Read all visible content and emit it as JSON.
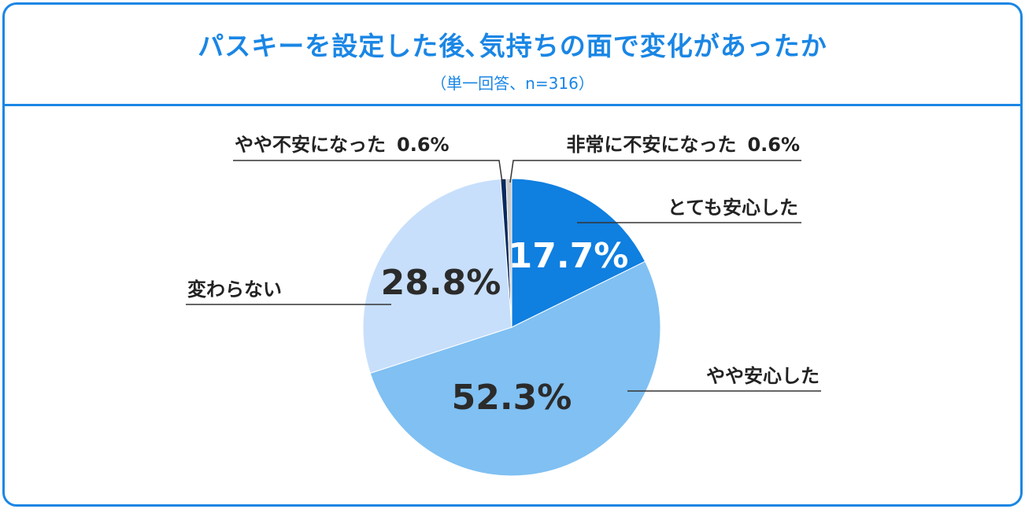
{
  "header": {
    "title": "パスキーを設定した後､気持ちの面で変化があったか",
    "subtitle": "（単一回答、n=316）"
  },
  "chart_data": {
    "type": "pie",
    "title": "パスキーを設定した後､気持ちの面で変化があったか",
    "subtitle": "（単一回答、n=316）",
    "unit": "%",
    "start": "12 o'clock, clockwise",
    "slices": [
      {
        "label": "とても安心した",
        "value": 17.7,
        "display": "17.7%",
        "color": "#0f7fe0",
        "value_color": "#ffffff"
      },
      {
        "label": "やや安心した",
        "value": 52.3,
        "display": "52.3%",
        "color": "#80c0f2",
        "value_color": "#2b2b2b"
      },
      {
        "label": "変わらない",
        "value": 28.8,
        "display": "28.8%",
        "color": "#c7dffb",
        "value_color": "#2b2b2b"
      },
      {
        "label": "やや不安になった",
        "value": 0.6,
        "display": "0.6%",
        "color": "#0a2a5e"
      },
      {
        "label": "非常に不安になった",
        "value": 0.6,
        "display": "0.6%",
        "color": "#c9c9c9"
      }
    ],
    "callouts": {
      "small_left": "やや不安になった",
      "small_left_value": "0.6%",
      "small_right": "非常に不安になった",
      "small_right_value": "0.6%"
    }
  }
}
